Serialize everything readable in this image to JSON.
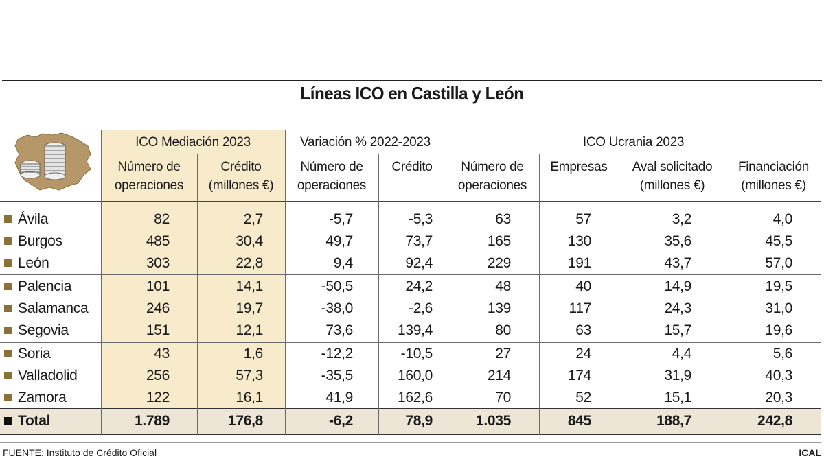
{
  "title": "Líneas ICO en Castilla y León",
  "groups": {
    "mediacion": "ICO Mediación 2023",
    "variacion": "Variación % 2022-2023",
    "ucrania": "ICO Ucrania 2023"
  },
  "columns": [
    {
      "l1": "Número de",
      "l2": "operaciones"
    },
    {
      "l1": "Crédito",
      "l2": "(millones €)"
    },
    {
      "l1": "Número de",
      "l2": "operaciones"
    },
    {
      "l1": "Crédito",
      "l2": ""
    },
    {
      "l1": "Número de",
      "l2": "operaciones"
    },
    {
      "l1": "Empresas",
      "l2": ""
    },
    {
      "l1": "Aval solicitado",
      "l2": "(millones €)"
    },
    {
      "l1": "Financiación",
      "l2": "(millones €)"
    }
  ],
  "rows": [
    {
      "name": "Ávila",
      "values": [
        "82",
        "2,7",
        "-5,7",
        "-5,3",
        "63",
        "57",
        "3,2",
        "4,0"
      ]
    },
    {
      "name": "Burgos",
      "values": [
        "485",
        "30,4",
        "49,7",
        "73,7",
        "165",
        "130",
        "35,6",
        "45,5"
      ]
    },
    {
      "name": "León",
      "values": [
        "303",
        "22,8",
        "9,4",
        "92,4",
        "229",
        "191",
        "43,7",
        "57,0"
      ]
    },
    {
      "name": "Palencia",
      "values": [
        "101",
        "14,1",
        "-50,5",
        "24,2",
        "48",
        "40",
        "14,9",
        "19,5"
      ]
    },
    {
      "name": "Salamanca",
      "values": [
        "246",
        "19,7",
        "-38,0",
        "-2,6",
        "139",
        "117",
        "24,3",
        "31,0"
      ]
    },
    {
      "name": "Segovia",
      "values": [
        "151",
        "12,1",
        "73,6",
        "139,4",
        "80",
        "63",
        "15,7",
        "19,6"
      ]
    },
    {
      "name": "Soria",
      "values": [
        "43",
        "1,6",
        "-12,2",
        "-10,5",
        "27",
        "24",
        "4,4",
        "5,6"
      ]
    },
    {
      "name": "Valladolid",
      "values": [
        "256",
        "57,3",
        "-35,5",
        "160,0",
        "214",
        "174",
        "31,9",
        "40,3"
      ]
    },
    {
      "name": "Zamora",
      "values": [
        "122",
        "16,1",
        "41,9",
        "162,6",
        "70",
        "52",
        "15,1",
        "20,3"
      ]
    }
  ],
  "total": {
    "name": "Total",
    "values": [
      "1.789",
      "176,8",
      "-6,2",
      "78,9",
      "1.035",
      "845",
      "188,7",
      "242,8"
    ]
  },
  "footer": {
    "source": "FUENTE: Instituto de Crédito Oficial",
    "brand": "ICAL"
  },
  "colors": {
    "shade": "#f7ebcc",
    "total_band": "#ede6d6",
    "bullet": "#8a7039",
    "map": "#b5976a"
  }
}
